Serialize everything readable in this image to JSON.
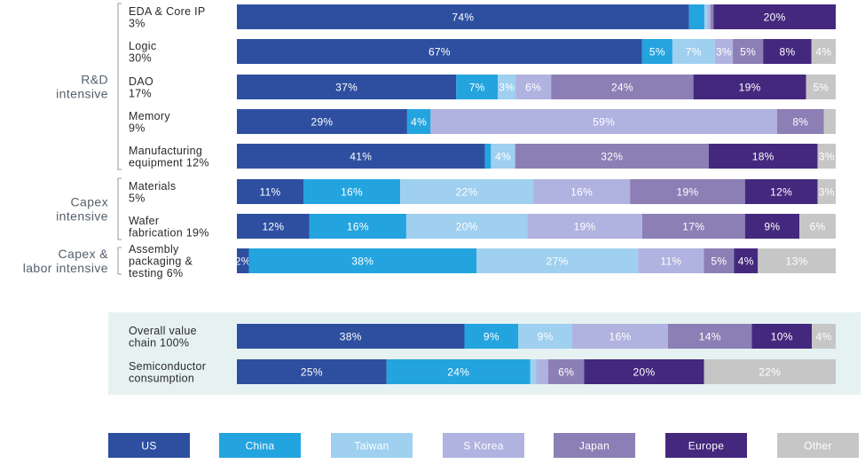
{
  "chart_data": {
    "type": "bar",
    "orientation": "horizontal",
    "stacked": true,
    "legend_placement": "bottom",
    "grid": false,
    "xlim": [
      0,
      100
    ],
    "series": [
      {
        "name": "US",
        "color": "#2e4fa0",
        "label_color": "#ffffff"
      },
      {
        "name": "China",
        "color": "#23a4df",
        "label_color": "#ffffff"
      },
      {
        "name": "Taiwan",
        "color": "#9fd0ef",
        "label_color": "#ffffff"
      },
      {
        "name": "S Korea",
        "color": "#b0b3df",
        "label_color": "#ffffff"
      },
      {
        "name": "Japan",
        "color": "#8c7fb5",
        "label_color": "#ffffff"
      },
      {
        "name": "Europe",
        "color": "#44287e",
        "label_color": "#ffffff"
      },
      {
        "name": "Other",
        "color": "#c6c6c6",
        "label_color": "#ffffff"
      }
    ],
    "groups": [
      {
        "label": [
          "R&D",
          "intensive"
        ],
        "first": 0,
        "last": 4
      },
      {
        "label": [
          "Capex",
          "intensive"
        ],
        "first": 5,
        "last": 6
      },
      {
        "label": [
          "Capex &",
          "labor intensive"
        ],
        "first": 7,
        "last": 7
      }
    ],
    "rows": [
      {
        "label": [
          "EDA & Core IP",
          "3%"
        ],
        "values": [
          74,
          2.5,
          0.5,
          0.5,
          0.5,
          20,
          0
        ],
        "labels": [
          "74%",
          "",
          "",
          "",
          "",
          "20%",
          ""
        ]
      },
      {
        "label": [
          "Logic",
          "30%"
        ],
        "values": [
          67,
          5,
          7,
          3,
          5,
          8,
          4
        ],
        "labels": [
          "67%",
          "5%",
          "7%",
          "3%",
          "5%",
          "8%",
          "4%"
        ]
      },
      {
        "label": [
          "DAO",
          "17%"
        ],
        "values": [
          37,
          7,
          3,
          6,
          24,
          19,
          5
        ],
        "labels": [
          "37%",
          "7%",
          "3%",
          "6%",
          "24%",
          "19%",
          "5%"
        ]
      },
      {
        "label": [
          "Memory",
          "9%"
        ],
        "values": [
          29,
          4,
          0,
          59,
          8,
          0,
          2
        ],
        "labels": [
          "29%",
          "4%",
          "",
          "59%",
          "8%",
          "",
          ""
        ]
      },
      {
        "label": [
          "Manufacturing",
          "equipment 12%"
        ],
        "values": [
          41,
          1,
          4,
          0,
          32,
          18,
          3
        ],
        "labels": [
          "41%",
          "",
          "4%",
          "",
          "32%",
          "18%",
          "3%"
        ]
      },
      {
        "label": [
          "Materials",
          "5%"
        ],
        "values": [
          11,
          16,
          22,
          16,
          19,
          12,
          3
        ],
        "labels": [
          "11%",
          "16%",
          "22%",
          "16%",
          "19%",
          "12%",
          "3%"
        ]
      },
      {
        "label": [
          "Wafer",
          "fabrication 19%"
        ],
        "values": [
          12,
          16,
          20,
          19,
          17,
          9,
          6
        ],
        "labels": [
          "12%",
          "16%",
          "20%",
          "19%",
          "17%",
          "9%",
          "6%"
        ]
      },
      {
        "label": [
          "Assembly",
          "packaging &",
          "testing 6%"
        ],
        "values": [
          2,
          38,
          27,
          11,
          5,
          4,
          13
        ],
        "labels": [
          "2%",
          "38%",
          "27%",
          "11%",
          "5%",
          "4%",
          "13%"
        ]
      }
    ],
    "summary_rows": [
      {
        "label": [
          "Overall value",
          "chain 100%"
        ],
        "values": [
          38,
          9,
          9,
          16,
          14,
          10,
          4
        ],
        "labels": [
          "38%",
          "9%",
          "9%",
          "16%",
          "14%",
          "10%",
          "4%"
        ]
      },
      {
        "label": [
          "Semiconductor",
          "consumption"
        ],
        "values": [
          25,
          24,
          1,
          2,
          6,
          20,
          22
        ],
        "labels": [
          "25%",
          "24%",
          "",
          "",
          "6%",
          "20%",
          "22%"
        ]
      }
    ],
    "summary_panel_color": "#e6f2f2"
  }
}
